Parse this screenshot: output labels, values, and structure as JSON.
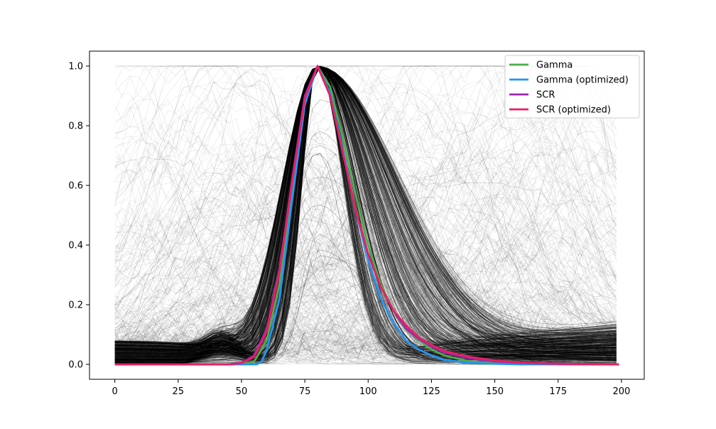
{
  "chart_data": {
    "type": "line",
    "title": "",
    "xlabel": "",
    "ylabel": "",
    "xlim": [
      -10,
      209
    ],
    "ylim": [
      -0.05,
      1.05
    ],
    "x_ticks": [
      0,
      25,
      50,
      75,
      100,
      125,
      150,
      175,
      200
    ],
    "y_ticks": [
      0.0,
      0.2,
      0.4,
      0.6,
      0.8,
      1.0
    ],
    "x_tick_labels": [
      "0",
      "25",
      "50",
      "75",
      "100",
      "125",
      "150",
      "175",
      "200"
    ],
    "y_tick_labels": [
      "0.0",
      "0.2",
      "0.4",
      "0.6",
      "0.8",
      "1.0"
    ],
    "grid": false,
    "legend_position": "top-right",
    "background_traces": {
      "description_color": "#000000",
      "count_shown": "many",
      "peak_x": 80,
      "x_range": [
        0,
        199
      ]
    },
    "series": [
      {
        "name": "Gamma",
        "color": "#4daf4a",
        "x": [
          0,
          50,
          55,
          60,
          65,
          70,
          75,
          80,
          85,
          90,
          95,
          100,
          105,
          110,
          115,
          120,
          125,
          130,
          140,
          150,
          160,
          175,
          199
        ],
        "values": [
          0.0,
          0.0,
          0.01,
          0.08,
          0.27,
          0.58,
          0.88,
          1.0,
          0.93,
          0.76,
          0.57,
          0.4,
          0.27,
          0.18,
          0.12,
          0.08,
          0.05,
          0.03,
          0.01,
          0.005,
          0.002,
          0.0,
          0.0
        ]
      },
      {
        "name": "Gamma (optimized)",
        "color": "#2196f3",
        "x": [
          0,
          52,
          56,
          58,
          60,
          65,
          70,
          75,
          80,
          85,
          90,
          95,
          100,
          105,
          110,
          115,
          120,
          125,
          130,
          140,
          150,
          160,
          175,
          199
        ],
        "values": [
          0.0,
          0.0,
          0.0,
          0.01,
          0.05,
          0.22,
          0.55,
          0.87,
          1.0,
          0.91,
          0.72,
          0.52,
          0.35,
          0.22,
          0.14,
          0.08,
          0.05,
          0.03,
          0.015,
          0.005,
          0.002,
          0.0,
          0.0,
          0.0
        ]
      },
      {
        "name": "SCR",
        "color": "#9c27b0",
        "x": [
          0,
          45,
          50,
          55,
          60,
          65,
          70,
          75,
          80,
          85,
          90,
          95,
          100,
          105,
          110,
          115,
          120,
          125,
          130,
          140,
          150,
          160,
          175,
          199
        ],
        "values": [
          0.0,
          0.0,
          0.005,
          0.03,
          0.12,
          0.32,
          0.62,
          0.9,
          1.0,
          0.9,
          0.71,
          0.52,
          0.37,
          0.26,
          0.18,
          0.12,
          0.085,
          0.06,
          0.04,
          0.02,
          0.01,
          0.005,
          0.002,
          0.0
        ]
      },
      {
        "name": "SCR (optimized)",
        "color": "#e91e63",
        "x": [
          0,
          45,
          50,
          55,
          60,
          65,
          70,
          75,
          80,
          85,
          90,
          95,
          100,
          105,
          110,
          115,
          120,
          125,
          130,
          140,
          150,
          160,
          175,
          199
        ],
        "values": [
          0.0,
          0.0,
          0.004,
          0.025,
          0.11,
          0.31,
          0.61,
          0.89,
          1.0,
          0.9,
          0.71,
          0.52,
          0.37,
          0.26,
          0.18,
          0.13,
          0.09,
          0.065,
          0.045,
          0.025,
          0.013,
          0.006,
          0.002,
          0.0
        ]
      }
    ]
  }
}
